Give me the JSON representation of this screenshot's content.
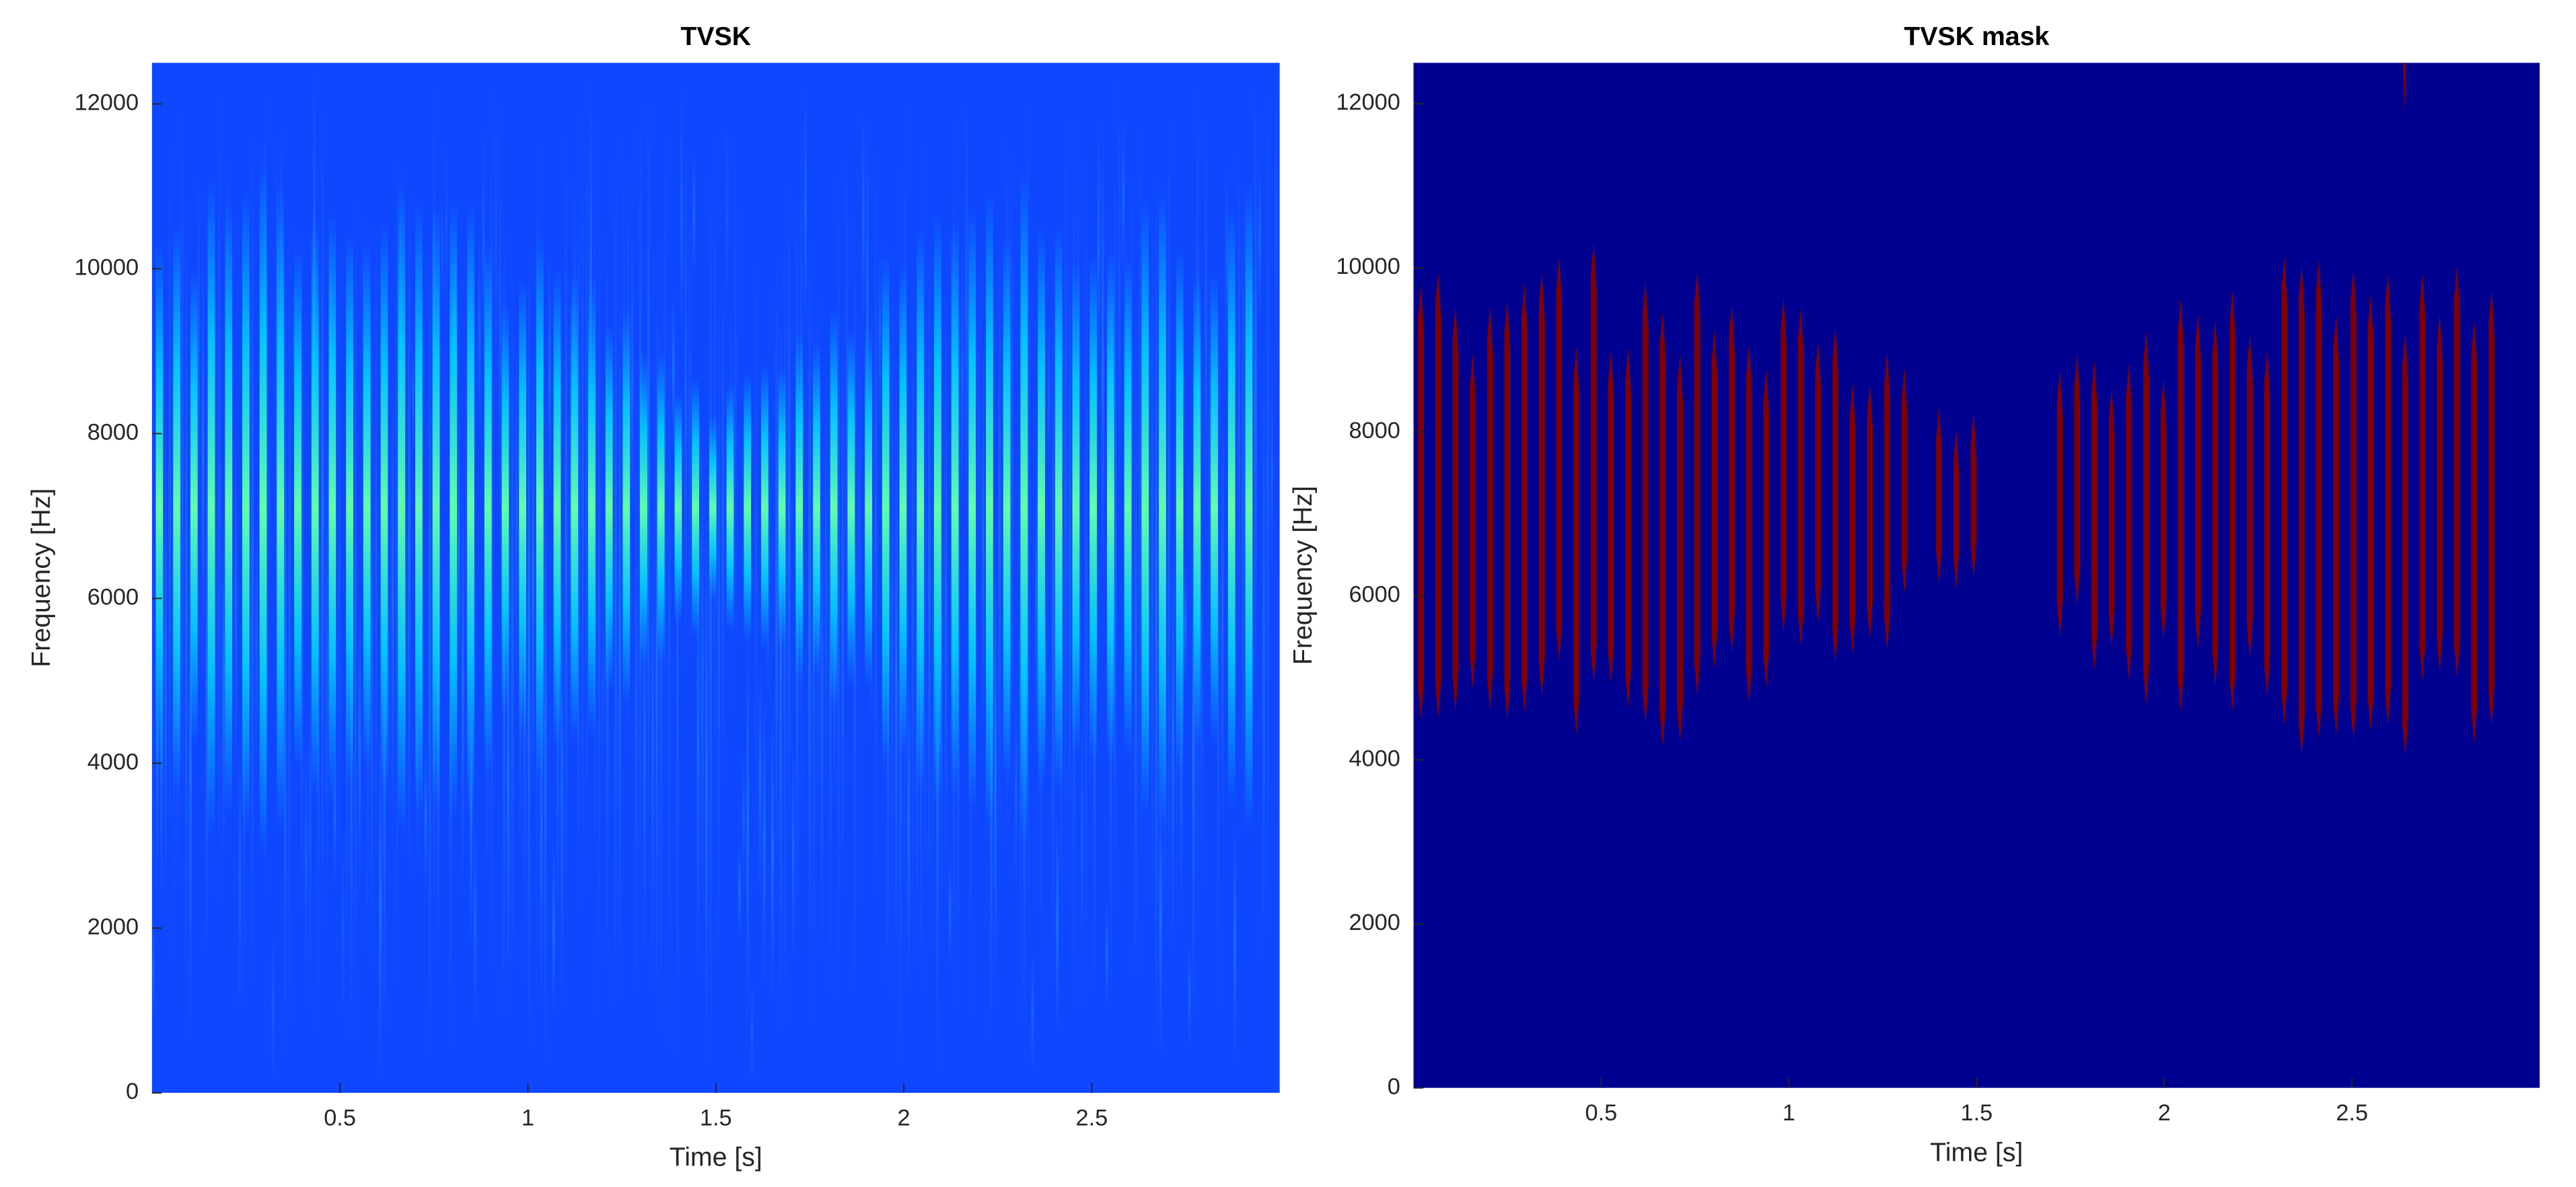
{
  "chart_data": [
    {
      "type": "heatmap",
      "title": "TVSK",
      "x_label": "Time [s]",
      "y_label": "Frequency [Hz]",
      "xlim": [
        0,
        3
      ],
      "ylim": [
        0,
        12500
      ],
      "xticks": [
        0.5,
        1,
        1.5,
        2,
        2.5
      ],
      "yticks": [
        0,
        2000,
        4000,
        6000,
        8000,
        10000,
        12000
      ],
      "colormap": "jet",
      "grid": false
    },
    {
      "type": "heatmap",
      "title": "TVSK mask",
      "x_label": "Time [s]",
      "y_label": "Frequency [Hz]",
      "xlim": [
        0,
        3
      ],
      "ylim": [
        0,
        12500
      ],
      "xticks": [
        0.5,
        1,
        1.5,
        2,
        2.5
      ],
      "yticks": [
        0,
        2000,
        4000,
        6000,
        8000,
        10000,
        12000
      ],
      "colormap": "binary-mask",
      "grid": false
    }
  ]
}
